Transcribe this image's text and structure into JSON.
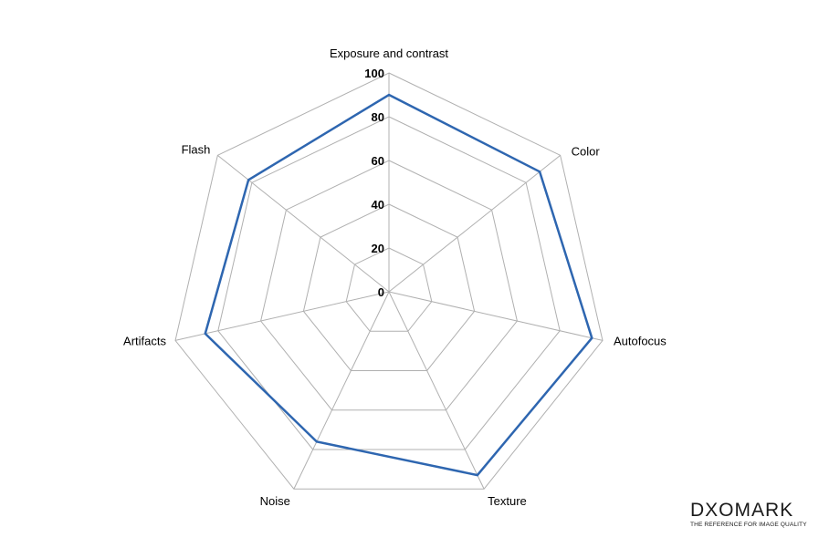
{
  "chart_data": {
    "type": "radar",
    "title": "",
    "categories": [
      "Exposure and contrast",
      "Color",
      "Autofocus",
      "Texture",
      "Noise",
      "Artifacts",
      "Flash"
    ],
    "series": [
      {
        "values": [
          90,
          88,
          95,
          93,
          76,
          86,
          82
        ],
        "color": "#2E66B0"
      }
    ],
    "r_ticks": [
      "0",
      "20",
      "40",
      "60",
      "80",
      "100"
    ],
    "r_range": [
      0,
      100
    ],
    "grid": true,
    "grid_color": "#b0b0b0"
  },
  "brand": {
    "logo_text": "DXOMARK",
    "tagline": "THE REFERENCE FOR IMAGE QUALITY"
  }
}
